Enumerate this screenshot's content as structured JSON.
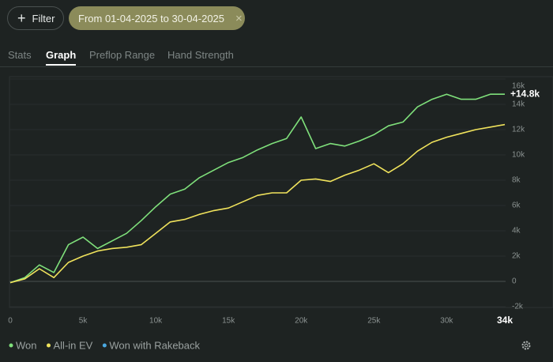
{
  "toolbar": {
    "filter": "Filter",
    "date_range": "From 01-04-2025 to 30-04-2025"
  },
  "tabs": [
    "Stats",
    "Graph",
    "Preflop Range",
    "Hand Strength"
  ],
  "chart_data": {
    "type": "line",
    "x": [
      0,
      1000,
      2000,
      3000,
      4000,
      5000,
      6000,
      7000,
      8000,
      9000,
      10000,
      11000,
      12000,
      13000,
      14000,
      15000,
      16000,
      17000,
      18000,
      19000,
      20000,
      21000,
      22000,
      23000,
      24000,
      25000,
      26000,
      27000,
      28000,
      29000,
      30000,
      31000,
      32000,
      33000,
      34000
    ],
    "series": [
      {
        "name": "Won",
        "color": "#7fe07b",
        "values": [
          -100,
          300,
          1300,
          700,
          2900,
          3500,
          2600,
          3200,
          3800,
          4800,
          5900,
          6900,
          7300,
          8200,
          8800,
          9400,
          9800,
          10400,
          10900,
          11300,
          13000,
          10500,
          10900,
          10700,
          11100,
          11600,
          12300,
          12600,
          13800,
          14400,
          14800,
          14400,
          14400,
          14800,
          14800
        ]
      },
      {
        "name": "All-in EV",
        "color": "#f0e35c",
        "values": [
          -100,
          200,
          1000,
          300,
          1500,
          2000,
          2400,
          2600,
          2700,
          2900,
          3800,
          4700,
          4900,
          5300,
          5600,
          5800,
          6300,
          6800,
          7000,
          7000,
          8000,
          8100,
          7900,
          8400,
          8800,
          9300,
          8600,
          9300,
          10300,
          11000,
          11400,
          11700,
          12000,
          12200,
          12400
        ]
      },
      {
        "name": "Won with Rakeback",
        "color": "#4aa8e0",
        "values": [
          null,
          null,
          null,
          null,
          null,
          null,
          null,
          null,
          null,
          null,
          null,
          null,
          null,
          null,
          null,
          null,
          null,
          null,
          null,
          null,
          null,
          null,
          null,
          null,
          null,
          null,
          null,
          null,
          null,
          null,
          null,
          null,
          null,
          null,
          null
        ]
      }
    ],
    "xlim": [
      0,
      34000
    ],
    "ylim": [
      -2000,
      16000
    ],
    "xticks": [
      0,
      {
        "value": 5000,
        "label": "5k"
      },
      {
        "value": 10000,
        "label": "10k"
      },
      {
        "value": 15000,
        "label": "15k"
      },
      {
        "value": 20000,
        "label": "20k"
      },
      {
        "value": 25000,
        "label": "25k"
      },
      {
        "value": 30000,
        "label": "30k"
      },
      {
        "value": 34000,
        "label": "34k"
      }
    ],
    "yticks": [
      {
        "value": -2000,
        "label": "-2k"
      },
      0,
      {
        "value": 2000,
        "label": "2k"
      },
      {
        "value": 4000,
        "label": "4k"
      },
      {
        "value": 6000,
        "label": "6k"
      },
      {
        "value": 8000,
        "label": "8k"
      },
      {
        "value": 10000,
        "label": "10k"
      },
      {
        "value": 12000,
        "label": "12k"
      },
      {
        "value": 14000,
        "label": "14k"
      },
      {
        "value": 16000,
        "label": "16k"
      }
    ],
    "grid": true,
    "end_label": "+14.8k"
  }
}
